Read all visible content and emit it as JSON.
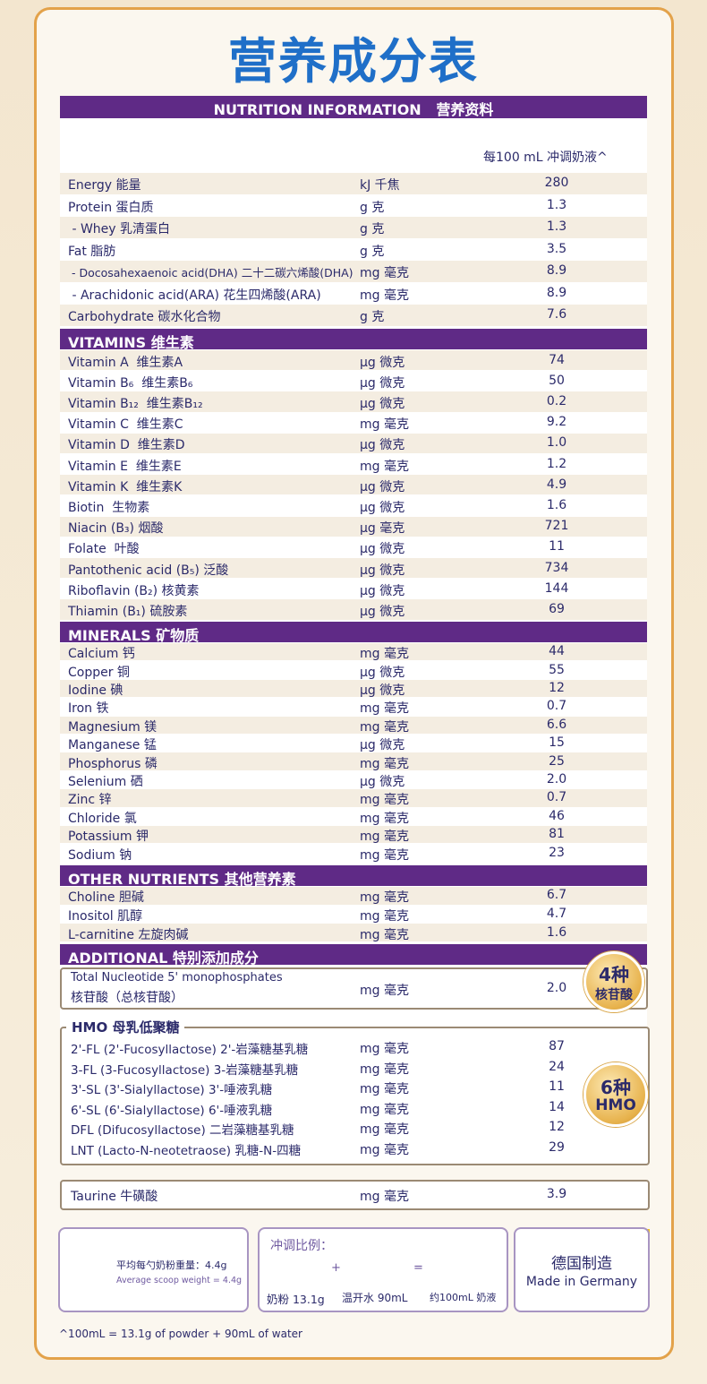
{
  "title": "营养成分表",
  "header": "NUTRITION INFORMATION   营养资料",
  "column_header": "每100 mL 冲调奶液^",
  "sections": [
    {
      "rows": [
        [
          "Energy 能量",
          "kJ 千焦",
          "280"
        ],
        [
          "Protein 蛋白质",
          "g 克",
          "1.3"
        ],
        [
          " - Whey 乳清蛋白",
          "g 克",
          "1.3"
        ],
        [
          "Fat 脂肪",
          "g 克",
          "3.5"
        ],
        [
          " - Docosahexaenoic acid(DHA) 二十二碳六烯酸(DHA)",
          "mg 毫克",
          "8.9"
        ],
        [
          " - Arachidonic acid(ARA) 花生四烯酸(ARA)",
          "mg 毫克",
          "8.9"
        ],
        [
          "Carbohydrate 碳水化合物",
          "g 克",
          "7.6"
        ]
      ]
    },
    {
      "title": "VITAMINS 维生素",
      "rows": [
        [
          "Vitamin A  维生素A",
          "μg 微克",
          "74"
        ],
        [
          "Vitamin B₆  维生素B₆",
          "μg 微克",
          "50"
        ],
        [
          "Vitamin B₁₂  维生素B₁₂",
          "μg 微克",
          "0.2"
        ],
        [
          "Vitamin C  维生素C",
          "mg 毫克",
          "9.2"
        ],
        [
          "Vitamin D  维生素D",
          "μg 微克",
          "1.0"
        ],
        [
          "Vitamin E  维生素E",
          "mg 毫克",
          "1.2"
        ],
        [
          "Vitamin K  维生素K",
          "μg 微克",
          "4.9"
        ],
        [
          "Biotin  生物素",
          "μg 微克",
          "1.6"
        ],
        [
          "Niacin (B₃) 烟酸",
          "μg 毫克",
          "721"
        ],
        [
          "Folate  叶酸",
          "μg 微克",
          "11"
        ],
        [
          "Pantothenic acid (B₅) 泛酸",
          "μg 微克",
          "734"
        ],
        [
          "Riboflavin (B₂) 核黄素",
          "μg 微克",
          "144"
        ],
        [
          "Thiamin (B₁) 硫胺素",
          "μg 微克",
          "69"
        ]
      ]
    },
    {
      "title": "MINERALS 矿物质",
      "rows": [
        [
          "Calcium 钙",
          "mg 毫克",
          "44"
        ],
        [
          "Copper 铜",
          "μg 微克",
          "55"
        ],
        [
          "Iodine 碘",
          "μg 微克",
          "12"
        ],
        [
          "Iron 铁",
          "mg 毫克",
          "0.7"
        ],
        [
          "Magnesium 镁",
          "mg 毫克",
          "6.6"
        ],
        [
          "Manganese 锰",
          "μg 微克",
          "15"
        ],
        [
          "Phosphorus 磷",
          "mg 毫克",
          "25"
        ],
        [
          "Selenium 硒",
          "μg 微克",
          "2.0"
        ],
        [
          "Zinc 锌",
          "mg 毫克",
          "0.7"
        ],
        [
          "Chloride 氯",
          "mg 毫克",
          "46"
        ],
        [
          "Potassium 钾",
          "mg 毫克",
          "81"
        ],
        [
          "Sodium 钠",
          "mg 毫克",
          "23"
        ]
      ]
    },
    {
      "title": "OTHER NUTRIENTS 其他营养素",
      "rows": [
        [
          "Choline 胆碱",
          "mg 毫克",
          "6.7"
        ],
        [
          "Inositol 肌醇",
          "mg 毫克",
          "4.7"
        ],
        [
          "L-carnitine 左旋肉碱",
          "mg 毫克",
          "1.6"
        ]
      ]
    }
  ],
  "additional": {
    "title": "ADDITIONAL 特别添加成分",
    "name": [
      "Total Nucleotide 5' monophosphates",
      "核苷酸（总核苷酸）"
    ],
    "unit": "mg 毫克",
    "value": "2.0",
    "badge": [
      "4种",
      "核苷酸"
    ]
  },
  "hmo": {
    "title": "HMO 母乳低聚糖",
    "badge": [
      "6种",
      "HMO"
    ],
    "rows": [
      [
        "2'-FL (2'-Fucosyllactose) 2'-岩藻糖基乳糖",
        "mg 毫克",
        "87"
      ],
      [
        "3-FL (3-Fucosyllactose) 3-岩藻糖基乳糖",
        "mg 毫克",
        "24"
      ],
      [
        "3'-SL (3'-Sialyllactose) 3'-唾液乳糖",
        "mg 毫克",
        "11"
      ],
      [
        "6'-SL (6'-Sialyllactose) 6'-唾液乳糖",
        "mg 毫克",
        "14"
      ],
      [
        "DFL (Difucosyllactose) 二岩藻糖基乳糖",
        "mg 毫克",
        "12"
      ],
      [
        "LNT (Lacto-N-neotetraose) 乳糖-N-四糖",
        "mg 毫克",
        "29"
      ]
    ]
  },
  "taurine": [
    "Taurine 牛磺酸",
    "mg 毫克",
    "3.9"
  ],
  "panels": {
    "scoop": [
      "平均每勺奶粉重量：4.4g",
      "Average scoop weight = 4.4g"
    ],
    "ratio": {
      "title": "冲调比例：",
      "plus": "+",
      "equals": "=",
      "items": [
        "奶粉 13.1g",
        "温开水 90mL",
        "约100mL 奶液"
      ]
    },
    "origin": [
      "德国制造",
      "Made in Germany"
    ]
  },
  "footnote": "^100mL = 13.1g of powder + 90mL of water"
}
